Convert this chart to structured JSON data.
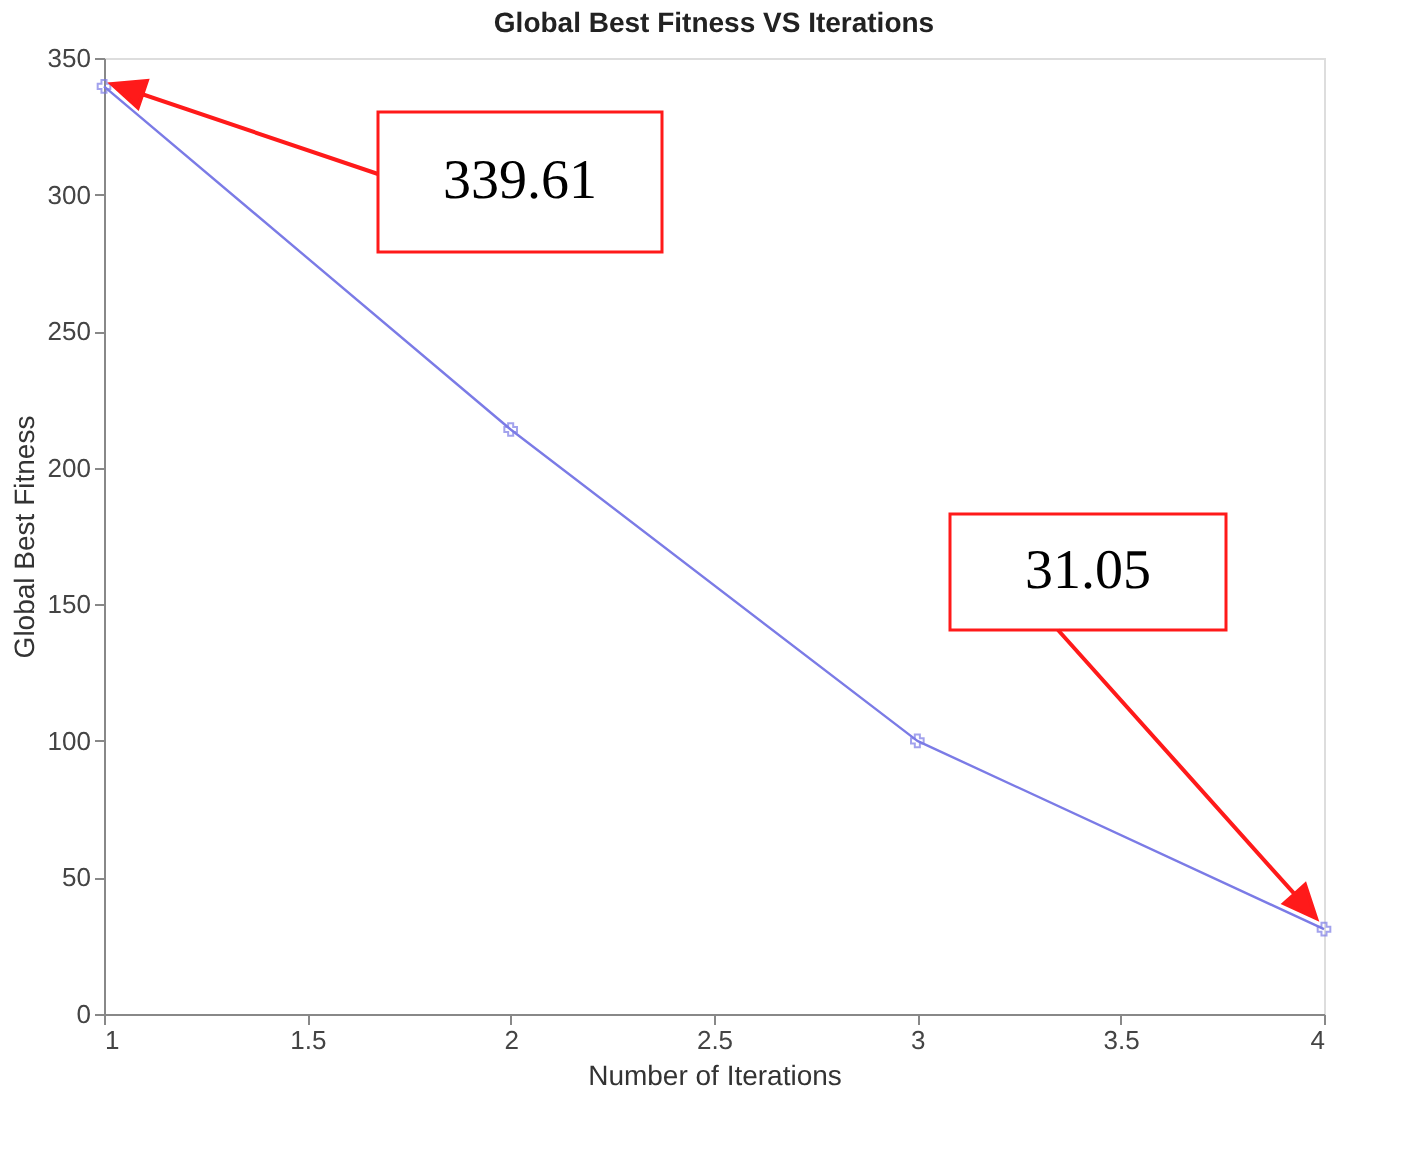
{
  "chart_data": {
    "type": "line",
    "title": "Global Best Fitness VS Iterations",
    "xlabel": "Number of Iterations",
    "ylabel": "Global Best Fitness",
    "x": [
      1,
      2,
      3,
      4
    ],
    "series": [
      {
        "color": "#7b7be6",
        "values": [
          339.61,
          214,
          100,
          31.05
        ]
      }
    ],
    "xlim": [
      1,
      4
    ],
    "xticks": [
      1,
      1.5,
      2,
      2.5,
      3,
      3.5,
      4
    ],
    "ylim": [
      0,
      350
    ],
    "yticks": [
      0,
      50,
      100,
      150,
      200,
      250,
      300,
      350
    ],
    "marker": "cross",
    "line_style": "solid",
    "grid": false,
    "annotations": [
      "339.61",
      "31.05"
    ]
  }
}
